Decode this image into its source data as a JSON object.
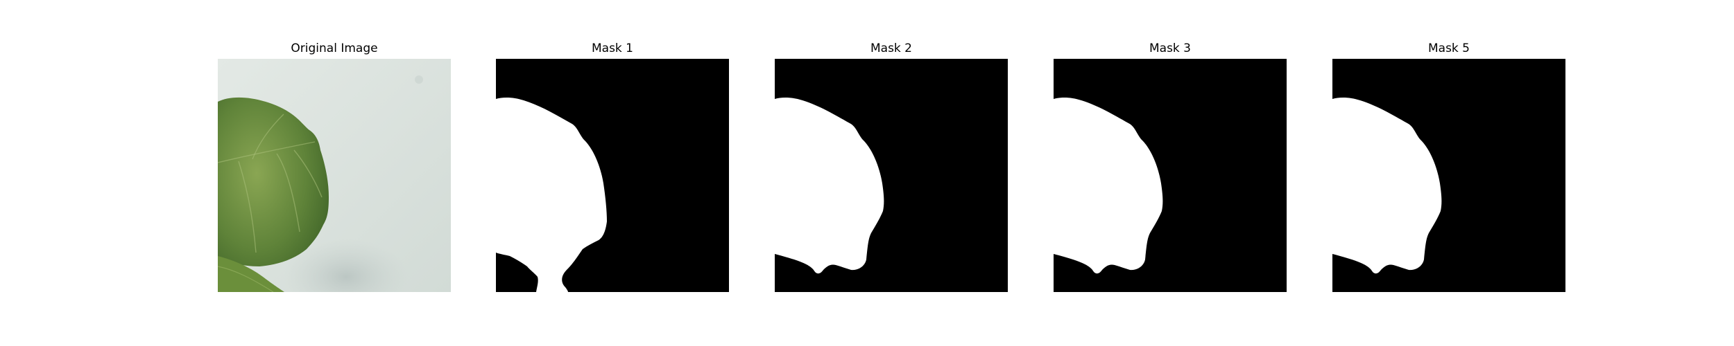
{
  "figure": {
    "panels": [
      {
        "title": "Original Image",
        "kind": "photo"
      },
      {
        "title": "Mask 1",
        "kind": "mask"
      },
      {
        "title": "Mask 2",
        "kind": "mask"
      },
      {
        "title": "Mask 3",
        "kind": "mask"
      },
      {
        "title": "Mask 5",
        "kind": "mask"
      }
    ]
  },
  "colors": {
    "background": "#ffffff",
    "mask_background": "#000000",
    "mask_foreground": "#ffffff",
    "photo_background": "#d9e1dc",
    "leaf_dark": "#4d7330",
    "leaf_light": "#8fab55"
  }
}
